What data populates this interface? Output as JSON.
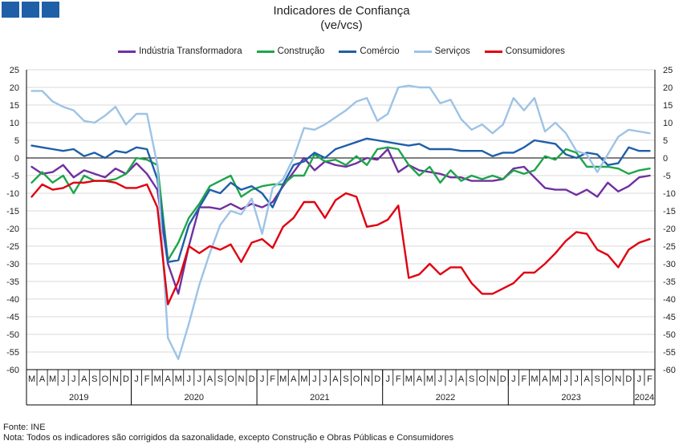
{
  "header": {
    "title": "Indicadores de Confiança",
    "subtitle": "(ve/vcs)"
  },
  "footer": {
    "source": "Fonte: INE",
    "note": "Nota: Todos os indicadores são corrigidos da sazonalidade, excepto Construção e Obras Públicas e Consumidores"
  },
  "chart_data": {
    "type": "line",
    "ylim": [
      -60,
      25
    ],
    "yticks": [
      25,
      20,
      15,
      10,
      5,
      0,
      -5,
      -10,
      -15,
      -20,
      -25,
      -30,
      -35,
      -40,
      -45,
      -50,
      -55,
      -60
    ],
    "month_labels": [
      "M",
      "A",
      "M",
      "J",
      "J",
      "A",
      "S",
      "O",
      "N",
      "D",
      "J",
      "F",
      "M",
      "A",
      "M",
      "J",
      "J",
      "A",
      "S",
      "O",
      "N",
      "D",
      "J",
      "F",
      "M",
      "A",
      "M",
      "J",
      "J",
      "A",
      "S",
      "O",
      "N",
      "D",
      "J",
      "F",
      "M",
      "A",
      "M",
      "J",
      "J",
      "A",
      "S",
      "O",
      "N",
      "D",
      "J",
      "F",
      "M",
      "A",
      "M",
      "J",
      "J",
      "A",
      "S",
      "O",
      "N",
      "D",
      "J",
      "F"
    ],
    "year_groups": [
      {
        "label": "2019",
        "start": 0,
        "end": 9
      },
      {
        "label": "2020",
        "start": 10,
        "end": 21
      },
      {
        "label": "2021",
        "start": 22,
        "end": 33
      },
      {
        "label": "2022",
        "start": 34,
        "end": 45
      },
      {
        "label": "2023",
        "start": 46,
        "end": 57
      },
      {
        "label": "2024",
        "start": 58,
        "end": 59
      }
    ],
    "grid": true,
    "legend_position": "top",
    "series": [
      {
        "name": "Indústria Transformadora",
        "color": "#7030a0",
        "values": [
          -2.5,
          -4.5,
          -4,
          -2,
          -5.5,
          -3.5,
          -4.5,
          -5.5,
          -3,
          -4.5,
          -1.5,
          -4.5,
          -9,
          -30,
          -38.5,
          -25,
          -14,
          -14,
          -14.5,
          -13,
          -14.5,
          -13,
          -14,
          -12.5,
          -8,
          -4,
          0,
          -3.5,
          -1,
          -2,
          -2.5,
          -1.5,
          0,
          -0.5,
          2.5,
          -4,
          -2,
          -3.5,
          -4,
          -4.5,
          -5.5,
          -5.5,
          -6.5,
          -6.5,
          -6.5,
          -6,
          -3,
          -2.5,
          -5.5,
          -8.5,
          -9,
          -9,
          -10.5,
          -9,
          -11,
          -7,
          -9.5,
          -8,
          -5.5,
          -5
        ]
      },
      {
        "name": "Construção",
        "color": "#1ea54a",
        "values": [
          -7,
          -4,
          -7,
          -5,
          -10,
          -5,
          -6.5,
          -6.5,
          -6,
          -4.5,
          0,
          -0.5,
          -2,
          -29,
          -24,
          -17,
          -13,
          -8,
          -6.5,
          -5,
          -11,
          -9,
          -8,
          -7.5,
          -7.5,
          -5,
          -5,
          1,
          -1,
          -0.5,
          -2,
          0.5,
          -2,
          2.5,
          3,
          2.5,
          -2,
          -5,
          -2.5,
          -7,
          -3.5,
          -6.5,
          -5,
          -6,
          -5,
          -6,
          -3.5,
          -4.5,
          -3.5,
          0.5,
          -0.5,
          2.5,
          1.5,
          -2.5,
          -2.5,
          -2.5,
          -3,
          -4.5,
          -3.5,
          -3
        ]
      },
      {
        "name": "Comércio",
        "color": "#1f5fa8",
        "values": [
          3.5,
          3,
          2.5,
          2,
          2.5,
          0.5,
          1.5,
          0,
          2,
          1.5,
          3,
          2.5,
          -6,
          -29.5,
          -29,
          -19,
          -14,
          -9,
          -10,
          -7,
          -9,
          -8,
          -10,
          -14,
          -7.5,
          -2,
          -1,
          1.5,
          0,
          2.5,
          3.5,
          4.5,
          5.5,
          5,
          4.5,
          4,
          3.5,
          4,
          2.5,
          2.5,
          2.5,
          2,
          2,
          2,
          0.5,
          1.5,
          1.5,
          3,
          5,
          4.5,
          4,
          1,
          0,
          1.5,
          1,
          -2,
          -1.5,
          3,
          2,
          2
        ]
      },
      {
        "name": "Serviços",
        "color": "#9dc3e6",
        "values": [
          19,
          19,
          16,
          14.5,
          13.5,
          10.5,
          10,
          12,
          14.5,
          9.5,
          12.5,
          12.5,
          -2,
          -51,
          -57,
          -47,
          -36,
          -27,
          -19,
          -15,
          -16,
          -11.5,
          -21.5,
          -8.5,
          -6,
          0,
          8.5,
          8,
          9.5,
          11.5,
          13.5,
          16,
          17,
          10.5,
          12.5,
          20,
          20.5,
          20,
          20,
          15.5,
          16.5,
          11,
          8,
          9.5,
          7,
          9.5,
          17,
          13.5,
          17,
          7.5,
          10,
          7,
          2,
          1,
          -4,
          1,
          6,
          8,
          7.5,
          7
        ]
      },
      {
        "name": "Consumidores",
        "color": "#e00010",
        "values": [
          -11,
          -7.5,
          -9,
          -8.5,
          -7,
          -7,
          -6.5,
          -6.5,
          -7,
          -8.5,
          -8.5,
          -7.5,
          -14,
          -41.5,
          -35,
          -25,
          -27,
          -25,
          -26,
          -24.5,
          -29.5,
          -24,
          -23,
          -25.5,
          -19.5,
          -17,
          -12.5,
          -12.5,
          -17,
          -12,
          -10,
          -11,
          -19.5,
          -19,
          -17.5,
          -13.5,
          -34,
          -33,
          -30,
          -33,
          -31,
          -31,
          -35.5,
          -38.5,
          -38.5,
          -37,
          -35.5,
          -32.5,
          -32.5,
          -30,
          -27,
          -23.5,
          -21,
          -21.5,
          -26,
          -27.5,
          -31,
          -26,
          -24,
          -23
        ]
      }
    ]
  }
}
